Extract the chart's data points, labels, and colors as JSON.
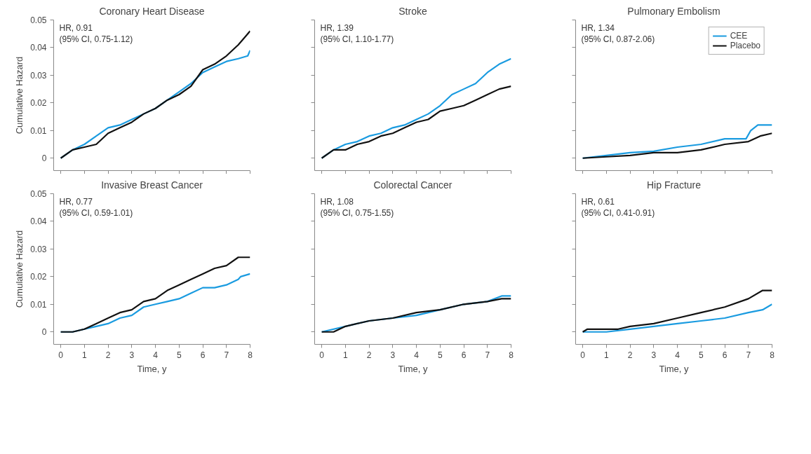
{
  "chart_data": [
    {
      "type": "line",
      "title": "Coronary Heart Disease",
      "ylabel": "Cumulative Hazard",
      "annotations": [
        "HR, 0.91",
        "(95% CI, 0.75-1.12)"
      ],
      "xlim": [
        -0.3,
        8
      ],
      "ylim": [
        -0.0045,
        0.05
      ],
      "xticks": [
        0,
        1,
        2,
        3,
        4,
        5,
        6,
        7,
        8
      ],
      "yticks": [
        0,
        0.01,
        0.02,
        0.03,
        0.04,
        0.05
      ],
      "tick_labels": "y",
      "series": [
        {
          "color": "#1a9be0",
          "x": [
            0,
            0.5,
            1,
            1.5,
            2,
            2.5,
            3,
            3.5,
            4,
            4.5,
            5,
            5.5,
            6,
            6.5,
            7,
            7.5,
            7.9,
            8
          ],
          "values": [
            0,
            0.003,
            0.005,
            0.008,
            0.011,
            0.012,
            0.014,
            0.016,
            0.018,
            0.021,
            0.024,
            0.027,
            0.031,
            0.033,
            0.035,
            0.036,
            0.037,
            0.039
          ]
        },
        {
          "color": "#111111",
          "x": [
            0,
            0.5,
            1,
            1.5,
            2,
            2.5,
            3,
            3.5,
            4,
            4.5,
            5,
            5.5,
            6,
            6.5,
            7,
            7.5,
            7.8,
            8
          ],
          "values": [
            0,
            0.003,
            0.004,
            0.005,
            0.009,
            0.011,
            0.013,
            0.016,
            0.018,
            0.021,
            0.023,
            0.026,
            0.032,
            0.034,
            0.037,
            0.041,
            0.044,
            0.046
          ]
        }
      ]
    },
    {
      "type": "line",
      "title": "Stroke",
      "annotations": [
        "HR, 1.39",
        "(95% CI, 1.10-1.77)"
      ],
      "xlim": [
        -0.3,
        8
      ],
      "ylim": [
        -0.0045,
        0.05
      ],
      "xticks": [
        0,
        1,
        2,
        3,
        4,
        5,
        6,
        7,
        8
      ],
      "yticks": [
        0,
        0.01,
        0.02,
        0.03,
        0.04,
        0.05
      ],
      "tick_labels": false,
      "series": [
        {
          "color": "#1a9be0",
          "x": [
            0,
            0.5,
            1,
            1.5,
            2,
            2.5,
            3,
            3.5,
            4,
            4.5,
            5,
            5.5,
            6,
            6.5,
            7,
            7.5,
            8
          ],
          "values": [
            0,
            0.003,
            0.005,
            0.006,
            0.008,
            0.009,
            0.011,
            0.012,
            0.014,
            0.016,
            0.019,
            0.023,
            0.025,
            0.027,
            0.031,
            0.034,
            0.036
          ]
        },
        {
          "color": "#111111",
          "x": [
            0,
            0.5,
            1,
            1.5,
            2,
            2.5,
            3,
            3.5,
            4,
            4.5,
            5,
            5.5,
            6,
            6.5,
            7,
            7.5,
            8
          ],
          "values": [
            0,
            0.003,
            0.003,
            0.005,
            0.006,
            0.008,
            0.009,
            0.011,
            0.013,
            0.014,
            0.017,
            0.018,
            0.019,
            0.021,
            0.023,
            0.025,
            0.026
          ]
        }
      ]
    },
    {
      "type": "line",
      "title": "Pulmonary Embolism",
      "annotations": [
        "HR, 1.34",
        "(95% CI, 0.87-2.06)"
      ],
      "xlim": [
        -0.3,
        8
      ],
      "ylim": [
        -0.0045,
        0.05
      ],
      "xticks": [
        0,
        1,
        2,
        3,
        4,
        5,
        6,
        7,
        8
      ],
      "yticks": [
        0,
        0.01,
        0.02,
        0.03,
        0.04,
        0.05
      ],
      "tick_labels": false,
      "legend": "top right",
      "series": [
        {
          "name": "CEE",
          "color": "#1a9be0",
          "x": [
            0,
            1,
            2,
            3,
            4,
            5,
            6,
            6.9,
            7.1,
            7.4,
            8
          ],
          "values": [
            0,
            0.001,
            0.002,
            0.0025,
            0.004,
            0.005,
            0.007,
            0.007,
            0.01,
            0.012,
            0.012
          ]
        },
        {
          "name": "Placebo",
          "color": "#111111",
          "x": [
            0,
            1,
            2,
            3,
            4,
            5,
            6,
            7,
            7.5,
            8
          ],
          "values": [
            0,
            0.0005,
            0.001,
            0.002,
            0.002,
            0.003,
            0.005,
            0.006,
            0.008,
            0.009
          ]
        }
      ]
    },
    {
      "type": "line",
      "title": "Invasive Breast Cancer",
      "xlabel": "Time, y",
      "ylabel": "Cumulative Hazard",
      "annotations": [
        "HR, 0.77",
        "(95% CI, 0.59-1.01)"
      ],
      "xlim": [
        -0.3,
        8
      ],
      "ylim": [
        -0.0045,
        0.05
      ],
      "xticks": [
        0,
        1,
        2,
        3,
        4,
        5,
        6,
        7,
        8
      ],
      "yticks": [
        0,
        0.01,
        0.02,
        0.03,
        0.04,
        0.05
      ],
      "series": [
        {
          "color": "#1a9be0",
          "x": [
            0,
            0.5,
            1,
            1.5,
            2,
            2.5,
            3,
            3.5,
            4,
            4.5,
            5,
            5.5,
            6,
            6.5,
            7,
            7.5,
            7.6,
            8
          ],
          "values": [
            0,
            0,
            0.001,
            0.002,
            0.003,
            0.005,
            0.006,
            0.009,
            0.01,
            0.011,
            0.012,
            0.014,
            0.016,
            0.016,
            0.017,
            0.019,
            0.02,
            0.021
          ]
        },
        {
          "color": "#111111",
          "x": [
            0,
            0.5,
            1,
            1.5,
            2,
            2.5,
            3,
            3.5,
            4,
            4.5,
            5,
            5.5,
            6,
            6.5,
            7,
            7.5,
            8
          ],
          "values": [
            0,
            0,
            0.001,
            0.003,
            0.005,
            0.007,
            0.008,
            0.011,
            0.012,
            0.015,
            0.017,
            0.019,
            0.021,
            0.023,
            0.024,
            0.027,
            0.027
          ]
        }
      ]
    },
    {
      "type": "line",
      "title": "Colorectal Cancer",
      "xlabel": "Time, y",
      "annotations": [
        "HR, 1.08",
        "(95% CI, 0.75-1.55)"
      ],
      "xlim": [
        -0.3,
        8
      ],
      "ylim": [
        -0.0045,
        0.05
      ],
      "xticks": [
        0,
        1,
        2,
        3,
        4,
        5,
        6,
        7,
        8
      ],
      "yticks": [
        0,
        0.01,
        0.02,
        0.03,
        0.04,
        0.05
      ],
      "tick_labels": "x",
      "series": [
        {
          "color": "#1a9be0",
          "x": [
            0,
            1,
            2,
            3,
            4,
            5,
            6,
            7,
            7.6,
            8
          ],
          "values": [
            0,
            0.002,
            0.004,
            0.005,
            0.006,
            0.008,
            0.01,
            0.011,
            0.013,
            0.013
          ]
        },
        {
          "color": "#111111",
          "x": [
            0,
            0.5,
            1,
            2,
            3,
            4,
            5,
            6,
            7,
            7.6,
            8
          ],
          "values": [
            0,
            0,
            0.002,
            0.004,
            0.005,
            0.007,
            0.008,
            0.01,
            0.011,
            0.012,
            0.012
          ]
        }
      ]
    },
    {
      "type": "line",
      "title": "Hip Fracture",
      "xlabel": "Time, y",
      "annotations": [
        "HR, 0.61",
        "(95% CI, 0.41-0.91)"
      ],
      "xlim": [
        -0.3,
        8
      ],
      "ylim": [
        -0.0045,
        0.05
      ],
      "xticks": [
        0,
        1,
        2,
        3,
        4,
        5,
        6,
        7,
        8
      ],
      "yticks": [
        0,
        0.01,
        0.02,
        0.03,
        0.04,
        0.05
      ],
      "tick_labels": "x",
      "series": [
        {
          "color": "#1a9be0",
          "x": [
            0,
            1,
            2,
            3,
            4,
            5,
            6,
            7,
            7.6,
            8
          ],
          "values": [
            0,
            0,
            0.001,
            0.002,
            0.003,
            0.004,
            0.005,
            0.007,
            0.008,
            0.01
          ]
        },
        {
          "color": "#111111",
          "x": [
            0,
            0.2,
            1.5,
            2,
            3,
            4,
            5,
            6,
            7,
            7.6,
            8
          ],
          "values": [
            0,
            0.001,
            0.001,
            0.002,
            0.003,
            0.005,
            0.007,
            0.009,
            0.012,
            0.015,
            0.015
          ]
        }
      ]
    }
  ]
}
